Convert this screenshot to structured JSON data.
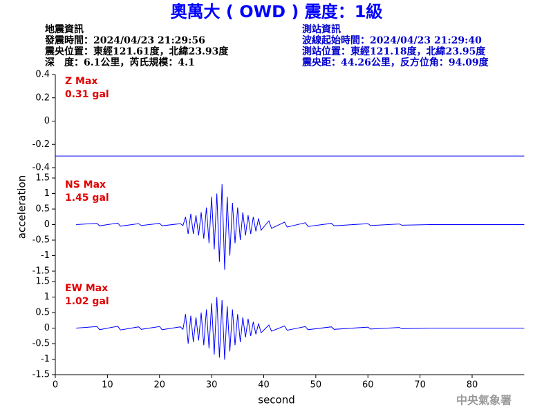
{
  "header": {
    "title": "奧萬大 ( OWD ) 震度：1級",
    "left": [
      "地震資訊",
      "發震時間：2024/04/23 21:29:56",
      "震央位置：東經121.61度，北緯23.93度",
      "深　度：6.1公里，芮氏規模：4.1"
    ],
    "right": [
      "測站資訊",
      "波線起始時間：2024/04/23 21:29:40",
      "測站位置：東經121.18度，北緯23.95度",
      "震央距：44.26公里，反方位角：94.09度"
    ],
    "footer": "中央氣象署"
  },
  "chart_data": [
    {
      "type": "line",
      "annotation": [
        "Z Max",
        "0.31 gal"
      ],
      "color": "#0000ff",
      "x": [
        0,
        90
      ],
      "values": [
        -0.3,
        -0.3
      ],
      "xlim": [
        0,
        90
      ],
      "ylim": [
        -0.4,
        0.4
      ],
      "yticks": [
        0.4,
        0.2,
        0,
        -0.2,
        -0.4
      ]
    },
    {
      "type": "line",
      "annotation": [
        "NS Max",
        "1.45 gal"
      ],
      "color": "#0000ff",
      "ylabel": "acceleration",
      "x": [
        4,
        8,
        8.5,
        12,
        12.5,
        16,
        16.5,
        20,
        20.5,
        24,
        24.5,
        25,
        25.5,
        26,
        26.5,
        27,
        27.5,
        28,
        28.5,
        29,
        29.5,
        30,
        30.5,
        31,
        31.5,
        32,
        32.5,
        33,
        33.5,
        34,
        34.5,
        35,
        35.5,
        36,
        36.5,
        37,
        37.5,
        38,
        38.5,
        39,
        39.5,
        41,
        41.5,
        44,
        44.5,
        48,
        48.5,
        53,
        53.5,
        60,
        60.5,
        66,
        66.5,
        72,
        90
      ],
      "values": [
        0,
        0.04,
        -0.04,
        0.05,
        -0.05,
        0.03,
        -0.03,
        0.04,
        -0.04,
        0.03,
        -0.03,
        0.25,
        -0.3,
        0.35,
        -0.3,
        0.3,
        -0.35,
        0.4,
        -0.45,
        0.55,
        -0.6,
        0.9,
        -0.8,
        1.0,
        -1.2,
        1.3,
        -1.45,
        0.9,
        -1.0,
        0.7,
        -0.6,
        0.55,
        -0.5,
        0.4,
        -0.35,
        0.3,
        -0.3,
        0.25,
        -0.22,
        0.2,
        -0.18,
        0.12,
        -0.12,
        0.08,
        -0.08,
        0.06,
        -0.06,
        0.04,
        -0.04,
        0.03,
        -0.03,
        0.02,
        -0.02,
        0,
        0
      ],
      "xlim": [
        0,
        90
      ],
      "ylim": [
        -1.5,
        1.5
      ],
      "yticks": [
        1.5,
        1,
        0.5,
        0,
        -0.5,
        -1,
        -1.5
      ]
    },
    {
      "type": "line",
      "annotation": [
        "EW Max",
        "1.02 gal"
      ],
      "color": "#0000ff",
      "xlabel": "second",
      "x": [
        4,
        8,
        8.5,
        12,
        12.5,
        16,
        16.5,
        20,
        20.5,
        24,
        24.5,
        25,
        25.5,
        26,
        26.5,
        27,
        27.5,
        28,
        28.5,
        29,
        29.5,
        30,
        30.5,
        31,
        31.5,
        32,
        32.5,
        33,
        33.5,
        34,
        34.5,
        35,
        35.5,
        36,
        36.5,
        37,
        37.5,
        38,
        38.5,
        39,
        39.5,
        41,
        41.5,
        44,
        44.5,
        48,
        48.5,
        53,
        53.5,
        60,
        60.5,
        66,
        66.5,
        72,
        90
      ],
      "values": [
        0,
        0.05,
        -0.05,
        0.06,
        -0.06,
        0.04,
        -0.04,
        0.05,
        -0.05,
        0.04,
        -0.04,
        0.45,
        -0.5,
        0.4,
        -0.45,
        0.35,
        -0.4,
        0.5,
        -0.55,
        0.6,
        -0.65,
        0.8,
        -0.85,
        1.0,
        -0.95,
        0.9,
        -1.02,
        0.7,
        -0.75,
        0.6,
        -0.55,
        0.45,
        -0.45,
        0.35,
        -0.3,
        0.3,
        -0.25,
        0.2,
        -0.2,
        0.15,
        -0.15,
        0.1,
        -0.1,
        0.07,
        -0.07,
        0.05,
        -0.05,
        0.04,
        -0.04,
        0.03,
        -0.03,
        0.02,
        -0.02,
        0,
        0
      ],
      "xlim": [
        0,
        90
      ],
      "ylim": [
        -1.5,
        1.5
      ],
      "yticks": [
        1.5,
        1,
        0.5,
        0,
        -0.5,
        -1,
        -1.5
      ],
      "xticks": [
        0,
        10,
        20,
        30,
        40,
        50,
        60,
        70,
        80
      ]
    }
  ]
}
